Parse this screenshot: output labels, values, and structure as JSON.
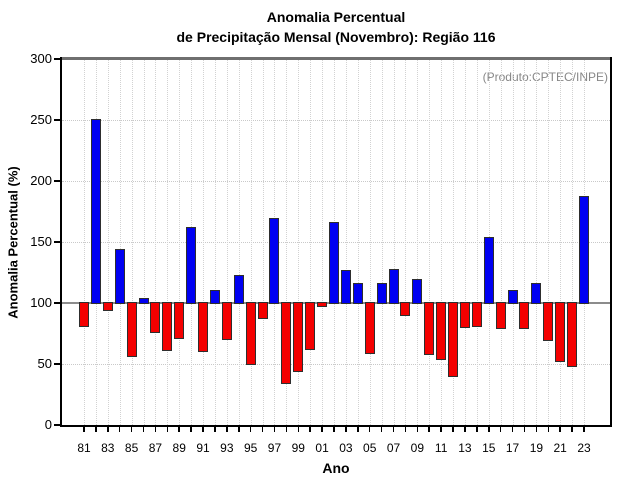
{
  "title": {
    "line1": "Anomalia Percentual",
    "line2": "de Precipitação Mensal (Novembro): Região 116"
  },
  "annotation": {
    "text": "(Produto:CPTEC/INPE)",
    "color": "#878787"
  },
  "axes": {
    "x_label": "Ano",
    "y_label": "Anomalia Percentual (%)",
    "y_ticks": [
      0,
      50,
      100,
      150,
      200,
      250,
      300
    ],
    "x_tick_labels": [
      "81",
      "83",
      "85",
      "87",
      "89",
      "91",
      "93",
      "95",
      "97",
      "99",
      "01",
      "03",
      "05",
      "07",
      "09",
      "11",
      "13",
      "15",
      "17",
      "19",
      "21",
      "23"
    ]
  },
  "colors": {
    "above_baseline": "#0000f2",
    "below_baseline": "#f40000",
    "bar_outline": "#2e2e2e",
    "baseline_line": "#8c8c8c",
    "grid_line": "#c9c9c9",
    "axis_line": "#000000",
    "top_border": "#6f6f6f",
    "annotation_text": "#878787"
  },
  "chart_data": {
    "type": "bar",
    "title": "Anomalia Percentual de Precipitação Mensal (Novembro): Região 116",
    "xlabel": "Ano",
    "ylabel": "Anomalia Percentual (%)",
    "ylim": [
      0,
      300
    ],
    "yticks_interval": 50,
    "baseline": 100,
    "grid": true,
    "legend": false,
    "color_rule": "values >= 100 blue, values < 100 red",
    "years": [
      1981,
      1982,
      1983,
      1984,
      1985,
      1986,
      1987,
      1988,
      1989,
      1990,
      1991,
      1992,
      1993,
      1994,
      1995,
      1996,
      1997,
      1998,
      1999,
      2000,
      2001,
      2002,
      2003,
      2004,
      2005,
      2006,
      2007,
      2008,
      2009,
      2010,
      2011,
      2012,
      2013,
      2014,
      2015,
      2016,
      2017,
      2018,
      2019,
      2020,
      2021,
      2022,
      2023
    ],
    "values": [
      81,
      251,
      94,
      144,
      56,
      104,
      76,
      61,
      71,
      162,
      60,
      111,
      70,
      123,
      50,
      87,
      170,
      34,
      44,
      62,
      97,
      166,
      127,
      116,
      59,
      116,
      128,
      90,
      120,
      58,
      54,
      40,
      80,
      81,
      154,
      79,
      111,
      79,
      116,
      69,
      52,
      48,
      188
    ]
  }
}
